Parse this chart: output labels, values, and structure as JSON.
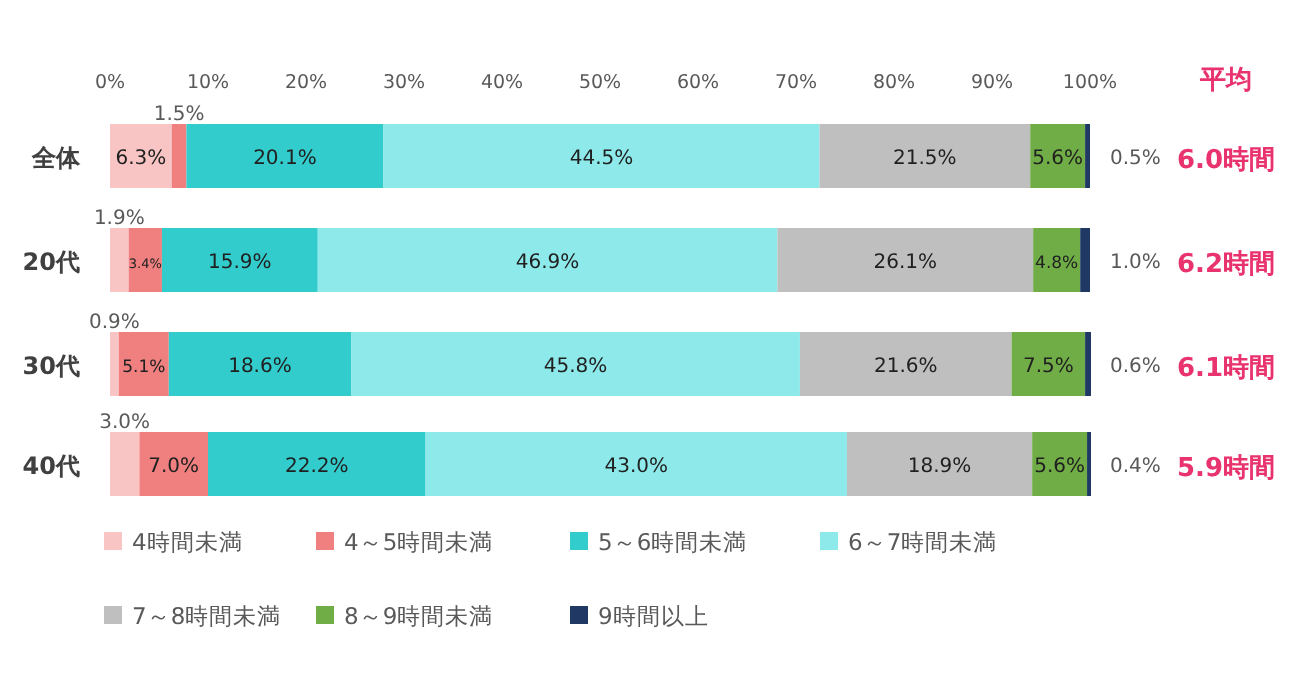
{
  "chart_data": {
    "type": "bar",
    "orientation": "horizontal",
    "stacked": true,
    "legend": "bottom left",
    "categories": [
      "全体",
      "20代",
      "30代",
      "40代"
    ],
    "xlim": [
      0,
      100
    ],
    "xticks": [
      {
        "value": 0,
        "label": "0%"
      },
      {
        "value": 10,
        "label": "10%"
      },
      {
        "value": 20,
        "label": "20%"
      },
      {
        "value": 30,
        "label": "30%"
      },
      {
        "value": 40,
        "label": "40%"
      },
      {
        "value": 50,
        "label": "50%"
      },
      {
        "value": 60,
        "label": "60%"
      },
      {
        "value": 70,
        "label": "70%"
      },
      {
        "value": 80,
        "label": "80%"
      },
      {
        "value": 90,
        "label": "90%"
      },
      {
        "value": 100,
        "label": "100%"
      }
    ],
    "series": [
      {
        "name": "4時間未満",
        "color": "#f9c4c4",
        "values": [
          6.3,
          1.9,
          0.9,
          3.0
        ],
        "value_labels": [
          "6.3%",
          "1.9%",
          "0.9%",
          "3.0%"
        ]
      },
      {
        "name": "4～5時間未満",
        "color": "#f08080",
        "values": [
          1.5,
          3.4,
          5.1,
          7.0
        ],
        "value_labels": [
          "1.5%",
          "3.4%",
          "5.1%",
          "7.0%"
        ]
      },
      {
        "name": "5～6時間未満",
        "color": "#33cccc",
        "values": [
          20.1,
          15.9,
          18.6,
          22.2
        ],
        "value_labels": [
          "20.1%",
          "15.9%",
          "18.6%",
          "22.2%"
        ]
      },
      {
        "name": "6～7時間未満",
        "color": "#8eeaea",
        "values": [
          44.5,
          46.9,
          45.8,
          43.0
        ],
        "value_labels": [
          "44.5%",
          "46.9%",
          "45.8%",
          "43.0%"
        ]
      },
      {
        "name": "7～8時間未満",
        "color": "#bfbfbf",
        "values": [
          21.5,
          26.1,
          21.6,
          18.9
        ],
        "value_labels": [
          "21.5%",
          "26.1%",
          "21.6%",
          "18.9%"
        ]
      },
      {
        "name": "8～9時間未満",
        "color": "#70ad47",
        "values": [
          5.6,
          4.8,
          7.5,
          5.6
        ],
        "value_labels": [
          "5.6%",
          "4.8%",
          "7.5%",
          "5.6%"
        ]
      },
      {
        "name": "9時間以上",
        "color": "#1f3864",
        "values": [
          0.5,
          1.0,
          0.6,
          0.4
        ],
        "value_labels": [
          "0.5%",
          "1.0%",
          "0.6%",
          "0.4%"
        ]
      }
    ],
    "annotations": [
      "平均",
      "6.0時間",
      "6.2時間",
      "6.1時間",
      "5.9時間"
    ]
  }
}
